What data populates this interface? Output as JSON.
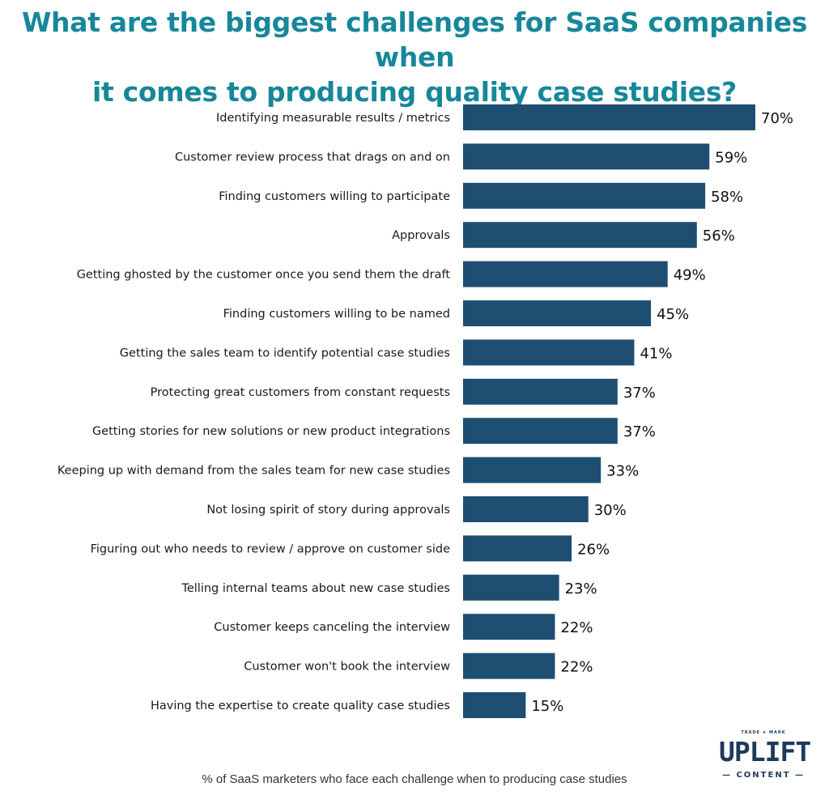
{
  "title": {
    "line1": "What are the biggest challenges for SaaS companies when",
    "line2": "it comes to producing quality case studies?"
  },
  "caption": "% of SaaS marketers who face each challenge when to producing case studies",
  "logo": {
    "trademark": "TRADE ★ MARK",
    "main": "UPLIFT",
    "sub": "— CONTENT —"
  },
  "colors": {
    "title": "#17879a",
    "bar": "#1f4e73",
    "logo": "#1e3a5a"
  },
  "chart_data": {
    "type": "bar",
    "orientation": "horizontal",
    "categories": [
      "Identifying measurable results / metrics",
      "Customer review process that drags on and on",
      "Finding customers willing to participate",
      "Approvals",
      "Getting ghosted by the customer once you send them the draft",
      "Finding customers willing to be named",
      "Getting the sales team to identify potential case studies",
      "Protecting great customers from constant requests",
      "Getting stories for new solutions or new product integrations",
      "Keeping up with demand from the sales team for new case studies",
      "Not losing spirit of story during approvals",
      "Figuring out who needs to review / approve on customer side",
      "Telling internal teams about new case studies",
      "Customer keeps canceling the interview",
      "Customer won't book the interview",
      "Having the expertise to create quality case studies"
    ],
    "values": [
      70,
      59,
      58,
      56,
      49,
      45,
      41,
      37,
      37,
      33,
      30,
      26,
      23,
      22,
      22,
      15
    ],
    "value_labels": [
      "70%",
      "59%",
      "58%",
      "56%",
      "49%",
      "45%",
      "41%",
      "37%",
      "37%",
      "33%",
      "30%",
      "26%",
      "23%",
      "22%",
      "22%",
      "15%"
    ],
    "unit": "%",
    "xlim": [
      0,
      70
    ],
    "grid": false,
    "legend": "none"
  }
}
